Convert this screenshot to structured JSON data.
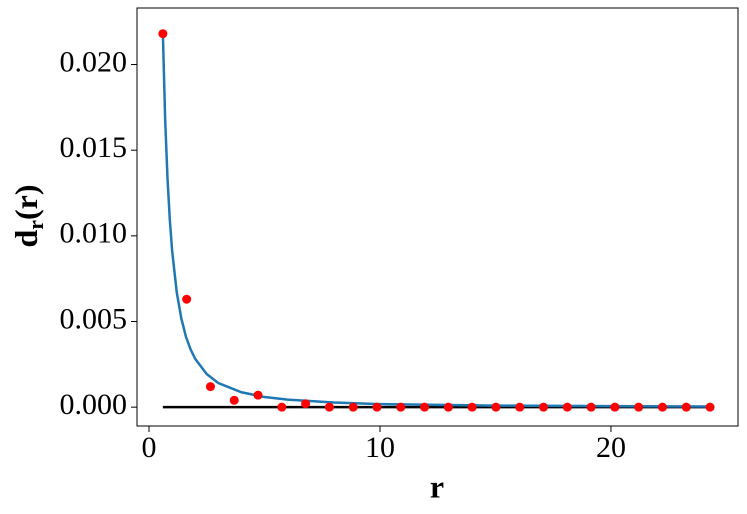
{
  "chart_data": {
    "type": "scatter",
    "xlabel": "r",
    "ylabel": [
      "d",
      "r",
      "(r)"
    ],
    "xlim": [
      -0.52,
      25.5
    ],
    "ylim": [
      -0.0011,
      0.0233
    ],
    "xticks": [
      0,
      10,
      20
    ],
    "yticks": [
      {
        "value": 0,
        "label": "0.000"
      },
      {
        "value": 0.005,
        "label": "0.005"
      },
      {
        "value": 0.01,
        "label": "0.010"
      },
      {
        "value": 0.015,
        "label": "0.015"
      },
      {
        "value": 0.02,
        "label": "0.020"
      }
    ],
    "series": [
      {
        "type": "line",
        "color": "#000000",
        "x": [
          0.6,
          24.29
        ],
        "values": [
          0,
          0
        ]
      },
      {
        "type": "line",
        "color": "#1f77b4",
        "x": [
          0.6,
          0.7,
          0.8,
          0.9,
          1.0,
          1.2,
          1.4,
          1.6,
          1.8,
          2.0,
          2.5,
          3,
          4,
          5,
          6,
          8,
          10,
          15,
          20,
          24.29
        ],
        "values": [
          0.0218,
          0.01677,
          0.01337,
          0.01095,
          0.00915,
          0.00671,
          0.00517,
          0.00411,
          0.00337,
          0.00282,
          0.00193,
          0.00141,
          0.00087,
          0.00059,
          0.00044,
          0.00027,
          0.00018,
          9e-05,
          6e-05,
          4e-05
        ]
      },
      {
        "type": "scatter",
        "color": "#ff0000",
        "x": [
          0.6,
          1.63,
          2.66,
          3.69,
          4.72,
          5.75,
          6.78,
          7.81,
          8.84,
          9.87,
          10.9,
          11.93,
          12.96,
          13.99,
          15.02,
          16.05,
          17.08,
          18.11,
          19.14,
          20.17,
          21.2,
          22.23,
          23.26,
          24.29
        ],
        "values": [
          0.0218,
          0.0063,
          0.0012,
          0.0004,
          0.0007,
          0,
          0.0002,
          0,
          0,
          0,
          0,
          0,
          0,
          0,
          0,
          0,
          0,
          0,
          0,
          0,
          0,
          0,
          0,
          0
        ]
      }
    ]
  }
}
